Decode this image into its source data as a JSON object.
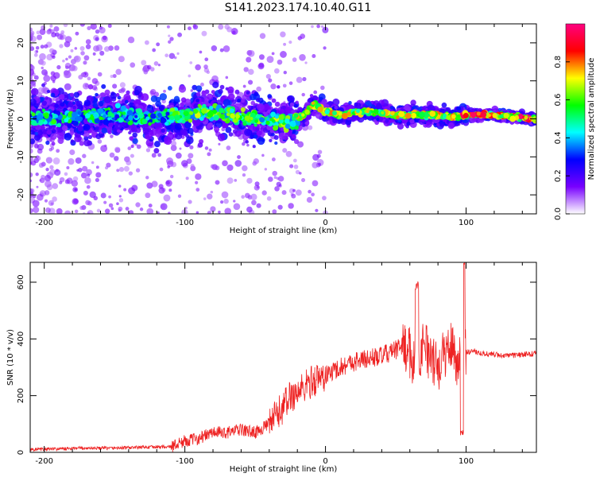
{
  "title": "S141.2023.174.10.40.G11",
  "chart_data": [
    {
      "type": "heatmap",
      "xlabel": "Height of straight line (km)",
      "ylabel": "Frequency (Hz)",
      "xlim": [
        -210,
        150
      ],
      "ylim": [
        -25,
        25
      ],
      "x_ticks": [
        -200,
        -100,
        0,
        100
      ],
      "y_ticks": [
        -20,
        -10,
        0,
        10,
        20
      ],
      "colorbar": {
        "label": "Normalized spectral amplitude",
        "range": [
          0.0,
          1.0
        ],
        "ticks": [
          0.0,
          0.2,
          0.4,
          0.6,
          0.8
        ],
        "tick_labels": [
          "0.0",
          "0.2",
          "0.4",
          "0.6",
          "0.8"
        ],
        "colors": [
          "#ffffff",
          "#7800ff",
          "#0000ff",
          "#00ffff",
          "#00ff00",
          "#ffff00",
          "#ff0000",
          "#ff0080"
        ]
      },
      "ridge": {
        "x": [
          -210,
          -180,
          -150,
          -120,
          -100,
          -80,
          -60,
          -40,
          -25,
          -15,
          -8,
          0,
          10,
          30,
          50,
          60,
          80,
          90,
          100,
          120,
          150
        ],
        "frequency_hz": [
          0,
          0.5,
          1,
          0,
          1,
          2,
          0.5,
          0,
          -1,
          1,
          4,
          2,
          1,
          2,
          1,
          1,
          1,
          0.5,
          1,
          1,
          0
        ]
      },
      "grid": false
    },
    {
      "type": "line",
      "xlabel": "Height of straight line (km)",
      "ylabel": "SNR (10 * v/v)",
      "xlim": [
        -210,
        150
      ],
      "ylim": [
        0,
        670
      ],
      "x_ticks": [
        -200,
        -100,
        0,
        100
      ],
      "y_ticks": [
        0,
        200,
        400,
        600
      ],
      "grid": false,
      "series": [
        {
          "color": "#ee2222",
          "x": [
            -210,
            -190,
            -170,
            -150,
            -130,
            -110,
            -100,
            -90,
            -80,
            -70,
            -60,
            -50,
            -40,
            -30,
            -25,
            -20,
            -15,
            -10,
            -5,
            0,
            10,
            20,
            30,
            40,
            50,
            55,
            60,
            65,
            70,
            75,
            80,
            85,
            90,
            95,
            97,
            100,
            105,
            110,
            120,
            130,
            150
          ],
          "y": [
            10,
            12,
            15,
            15,
            18,
            20,
            40,
            50,
            70,
            70,
            80,
            70,
            100,
            160,
            200,
            210,
            230,
            250,
            260,
            270,
            300,
            320,
            330,
            340,
            360,
            380,
            350,
            300,
            400,
            320,
            300,
            350,
            380,
            300,
            450,
            350,
            360,
            350,
            345,
            340,
            350
          ]
        }
      ],
      "annotations": [
        {
          "x": 65,
          "y": 590
        },
        {
          "x": 98,
          "y": 670
        },
        {
          "x": 97,
          "y": 70
        }
      ]
    }
  ]
}
